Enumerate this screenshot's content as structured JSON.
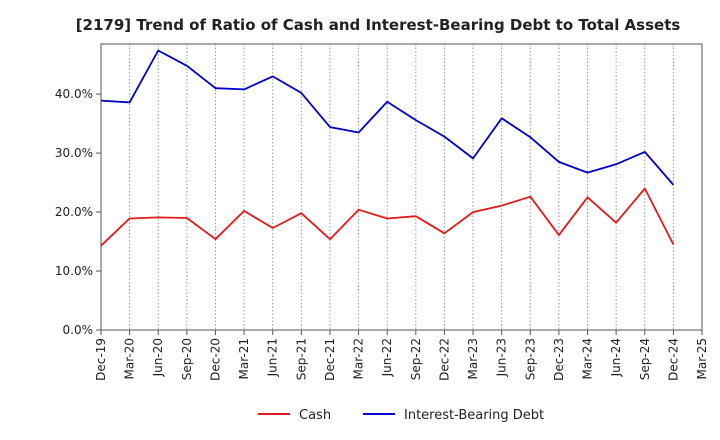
{
  "chart_data": {
    "type": "line",
    "title": "[2179]  Trend of Ratio of Cash and Interest-Bearing Debt to Total Assets",
    "xlabel": "",
    "ylabel": "",
    "categories": [
      "Dec-19",
      "Mar-20",
      "Jun-20",
      "Sep-20",
      "Dec-20",
      "Mar-21",
      "Jun-21",
      "Sep-21",
      "Dec-21",
      "Mar-22",
      "Jun-22",
      "Sep-22",
      "Dec-22",
      "Mar-23",
      "Jun-23",
      "Sep-23",
      "Dec-23",
      "Mar-24",
      "Jun-24",
      "Sep-24",
      "Dec-24",
      "Mar-25"
    ],
    "y_ticks": [
      "0.0%",
      "10.0%",
      "20.0%",
      "30.0%",
      "40.0%"
    ],
    "y_tick_values": [
      0,
      10,
      20,
      30,
      40
    ],
    "ylim": [
      0,
      48.5
    ],
    "grid": "vertical dotted",
    "legend_position": "bottom-center",
    "series": [
      {
        "name": "Cash",
        "color": "#e31a1c",
        "values": [
          14.3,
          18.9,
          19.1,
          19.0,
          15.4,
          20.2,
          17.3,
          19.8,
          15.4,
          20.4,
          18.9,
          19.3,
          16.4,
          20.0,
          21.1,
          22.6,
          16.1,
          22.5,
          18.2,
          24.0,
          14.5,
          null
        ]
      },
      {
        "name": "Interest-Bearing Debt",
        "color": "#0000cc",
        "values": [
          38.9,
          38.6,
          47.4,
          44.8,
          41.0,
          40.8,
          43.0,
          40.2,
          34.4,
          33.5,
          38.7,
          35.6,
          32.8,
          29.1,
          35.9,
          32.7,
          28.5,
          26.7,
          28.1,
          30.2,
          24.6,
          null
        ]
      }
    ]
  }
}
